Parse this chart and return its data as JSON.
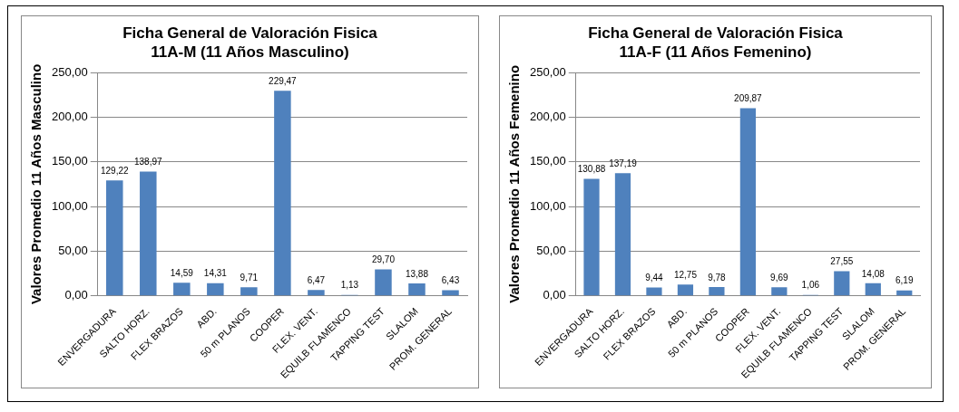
{
  "chart_data": [
    {
      "type": "bar",
      "title": "Ficha General de Valoración Fisica",
      "subtitle": "11A-M (11 Años Masculino)",
      "ylabel": "Valores Promedio 11 Años Masculino",
      "categories": [
        "ENVERGADURA",
        "SALTO HORZ.",
        "FLEX BRAZOS",
        "ABD.",
        "50 m PLANOS",
        "COOPER",
        "FLEX. VENT.",
        "EQUILB FLAMENCO",
        "TAPPING TEST",
        "SLALOM",
        "PROM. GENERAL"
      ],
      "values": [
        129.22,
        138.97,
        14.59,
        14.31,
        9.71,
        229.47,
        6.47,
        1.13,
        29.7,
        13.88,
        6.43
      ],
      "value_labels": [
        "129,22",
        "138,97",
        "14,59",
        "14,31",
        "9,71",
        "229,47",
        "6,47",
        "1,13",
        "29,70",
        "13,88",
        "6,43"
      ],
      "color": "#4f81bd",
      "ylim": [
        0,
        250
      ],
      "yticks": [
        {
          "value": 0,
          "label": "0,00"
        },
        {
          "value": 50,
          "label": "50,00"
        },
        {
          "value": 100,
          "label": "100,00"
        },
        {
          "value": 150,
          "label": "150,00"
        },
        {
          "value": 200,
          "label": "200,00"
        },
        {
          "value": 250,
          "label": "250,00"
        }
      ],
      "grid": "y",
      "legend": false
    },
    {
      "type": "bar",
      "title": "Ficha General de Valoración Fisica",
      "subtitle": "11A-F (11 Años Femenino)",
      "ylabel": "Valores Promedio 11 Años Femenino",
      "categories": [
        "ENVERGADURA",
        "SALTO HORZ.",
        "FLEX BRAZOS",
        "ABD.",
        "50 m PLANOS",
        "COOPER",
        "FLEX. VENT.",
        "EQUILB FLAMENCO",
        "TAPPING TEST",
        "SLALOM",
        "PROM. GENERAL"
      ],
      "values": [
        130.88,
        137.19,
        9.44,
        12.75,
        9.78,
        209.87,
        9.69,
        1.06,
        27.55,
        14.08,
        6.19
      ],
      "value_labels": [
        "130,88",
        "137,19",
        "9,44",
        "12,75",
        "9,78",
        "209,87",
        "9,69",
        "1,06",
        "27,55",
        "14,08",
        "6,19"
      ],
      "color": "#4f81bd",
      "ylim": [
        0,
        250
      ],
      "yticks": [
        {
          "value": 0,
          "label": "0,00"
        },
        {
          "value": 50,
          "label": "50,00"
        },
        {
          "value": 100,
          "label": "100,00"
        },
        {
          "value": 150,
          "label": "150,00"
        },
        {
          "value": 200,
          "label": "200,00"
        },
        {
          "value": 250,
          "label": "250,00"
        }
      ],
      "grid": "y",
      "legend": false
    }
  ]
}
